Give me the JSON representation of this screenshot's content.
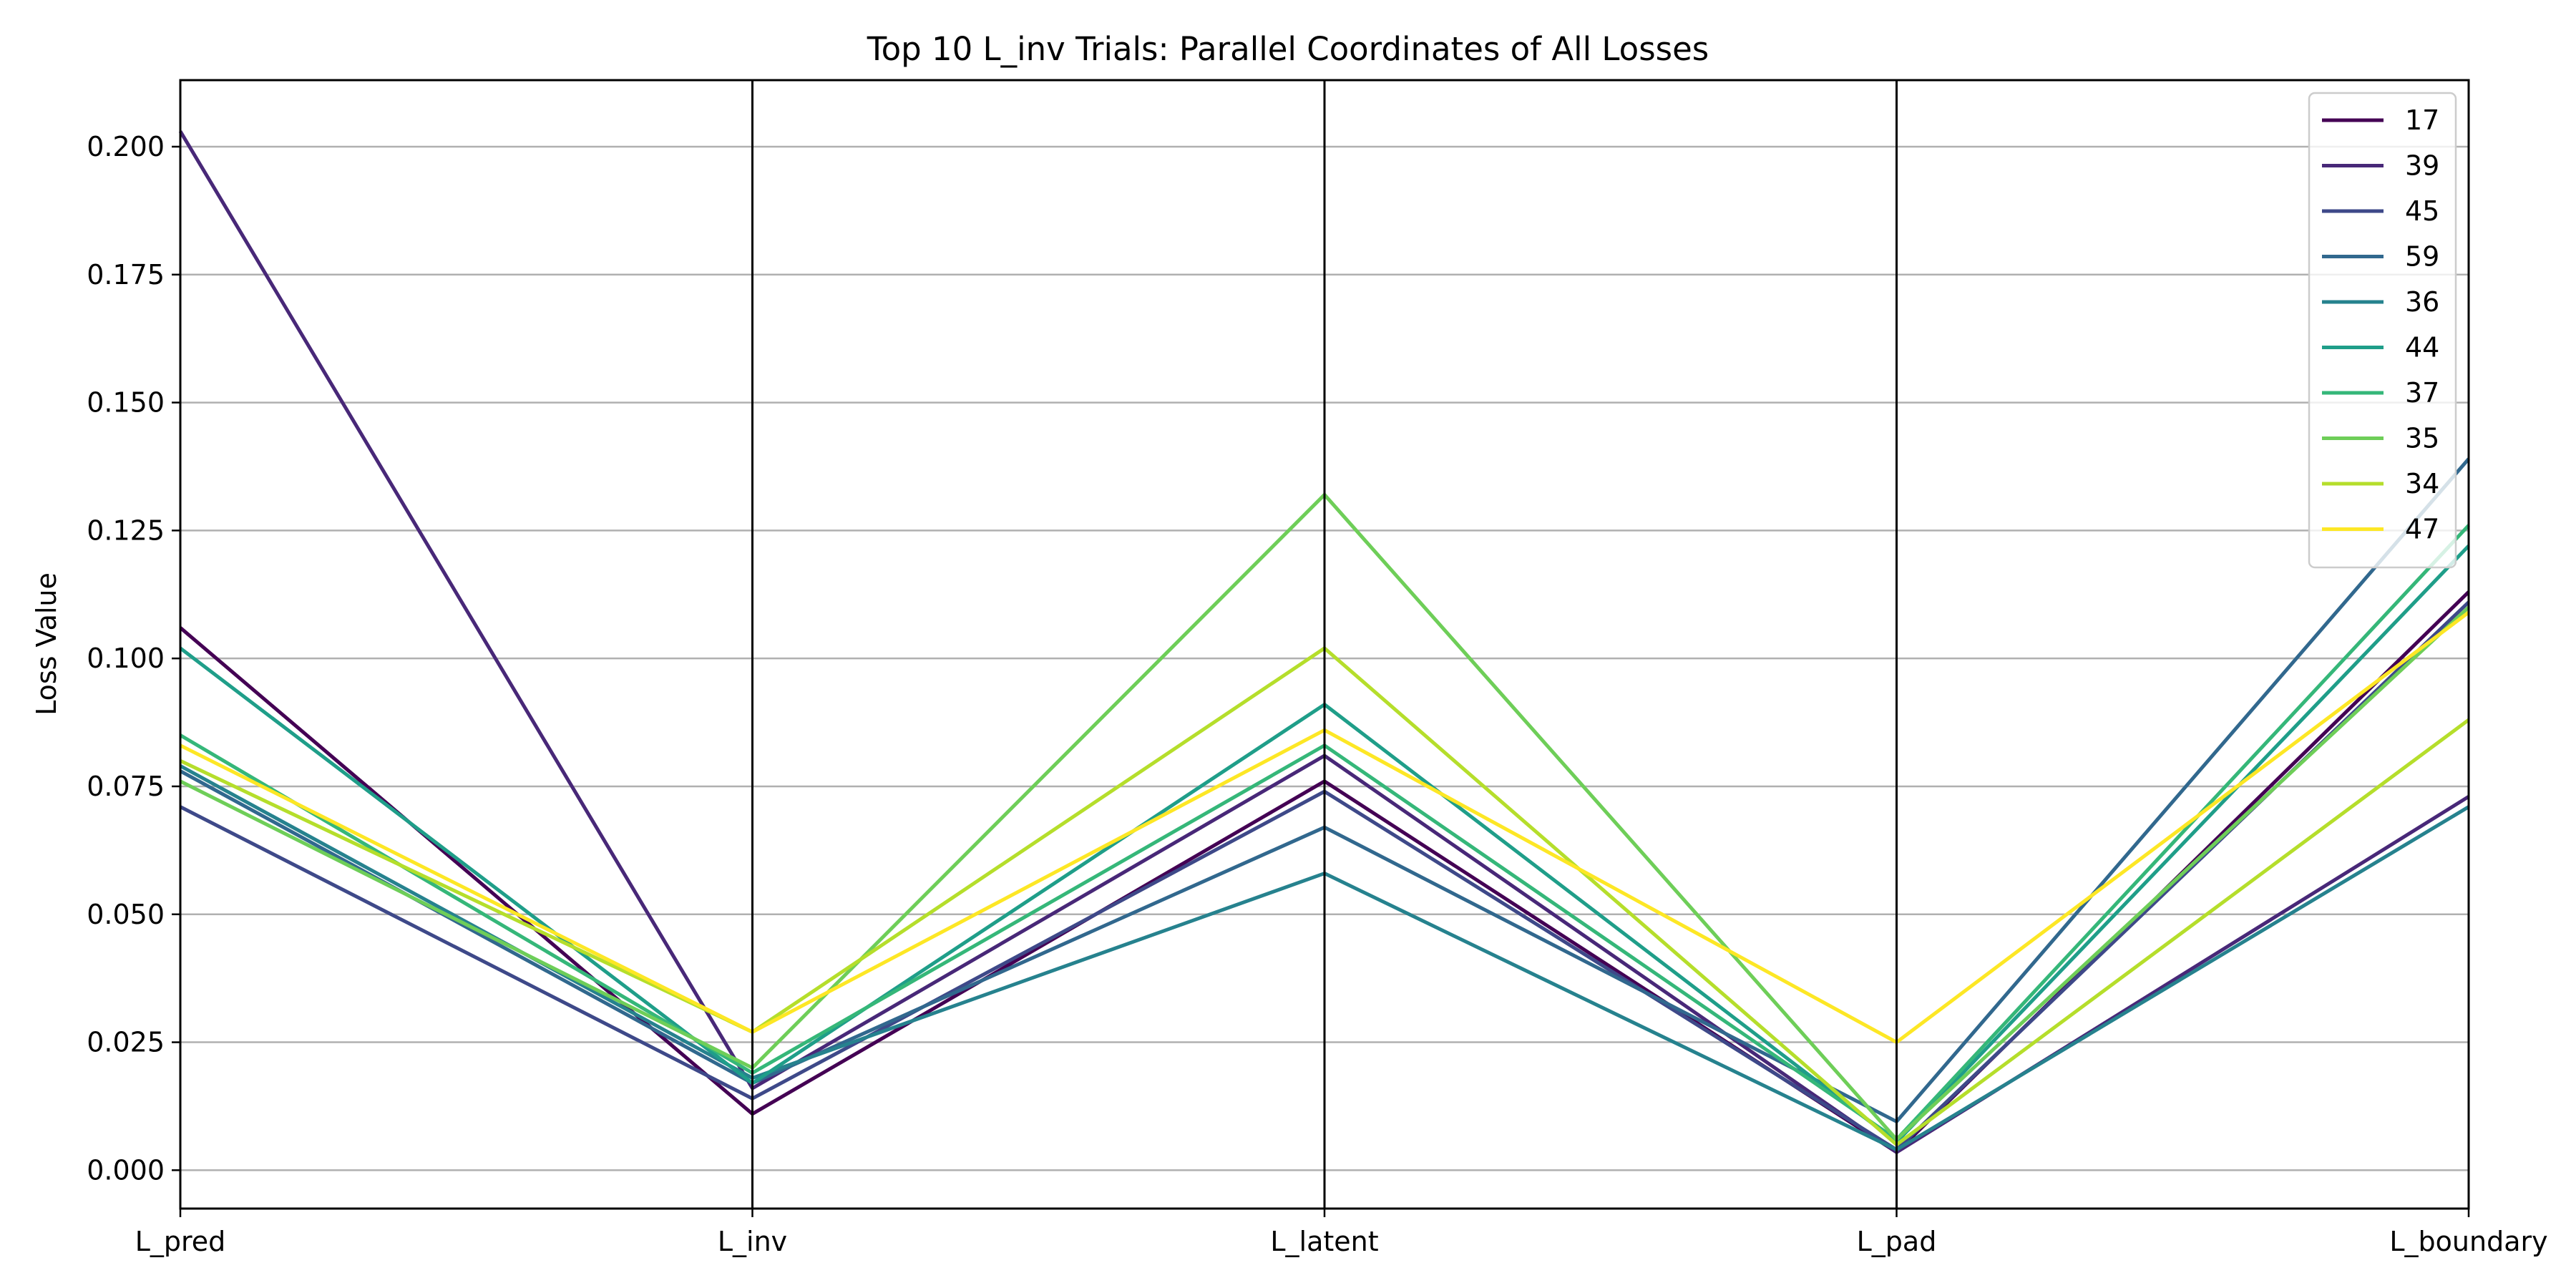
{
  "chart_data": {
    "type": "line",
    "subtype": "parallel-coordinates",
    "title": "Top 10 L_inv Trials: Parallel Coordinates of All Losses",
    "xlabel": "",
    "ylabel": "Loss Value",
    "categories": [
      "L_pred",
      "L_inv",
      "L_latent",
      "L_pad",
      "L_boundary"
    ],
    "ylim": [
      -0.0075,
      0.213
    ],
    "yticks": [
      0.0,
      0.025,
      0.05,
      0.075,
      0.1,
      0.125,
      0.15,
      0.175,
      0.2
    ],
    "ytick_labels": [
      "0.000",
      "0.025",
      "0.050",
      "0.075",
      "0.100",
      "0.125",
      "0.150",
      "0.175",
      "0.200"
    ],
    "grid": "horizontal",
    "legend_position": "top-right",
    "colormap": "viridis",
    "series": [
      {
        "name": "17",
        "color": "#440154",
        "values": [
          0.106,
          0.011,
          0.076,
          0.0035,
          0.113
        ]
      },
      {
        "name": "39",
        "color": "#482878",
        "values": [
          0.203,
          0.016,
          0.081,
          0.0035,
          0.073
        ]
      },
      {
        "name": "45",
        "color": "#3e4989",
        "values": [
          0.071,
          0.014,
          0.074,
          0.004,
          0.111
        ]
      },
      {
        "name": "59",
        "color": "#31688e",
        "values": [
          0.078,
          0.017,
          0.067,
          0.0095,
          0.139
        ]
      },
      {
        "name": "36",
        "color": "#26828e",
        "values": [
          0.079,
          0.018,
          0.058,
          0.004,
          0.071
        ]
      },
      {
        "name": "44",
        "color": "#1f9e89",
        "values": [
          0.102,
          0.017,
          0.091,
          0.0055,
          0.122
        ]
      },
      {
        "name": "37",
        "color": "#35b779",
        "values": [
          0.085,
          0.019,
          0.083,
          0.006,
          0.126
        ]
      },
      {
        "name": "35",
        "color": "#6ece58",
        "values": [
          0.076,
          0.02,
          0.132,
          0.006,
          0.11
        ]
      },
      {
        "name": "34",
        "color": "#b5de2b",
        "values": [
          0.08,
          0.027,
          0.102,
          0.005,
          0.088
        ]
      },
      {
        "name": "47",
        "color": "#fde725",
        "values": [
          0.083,
          0.027,
          0.086,
          0.025,
          0.109
        ]
      }
    ]
  }
}
